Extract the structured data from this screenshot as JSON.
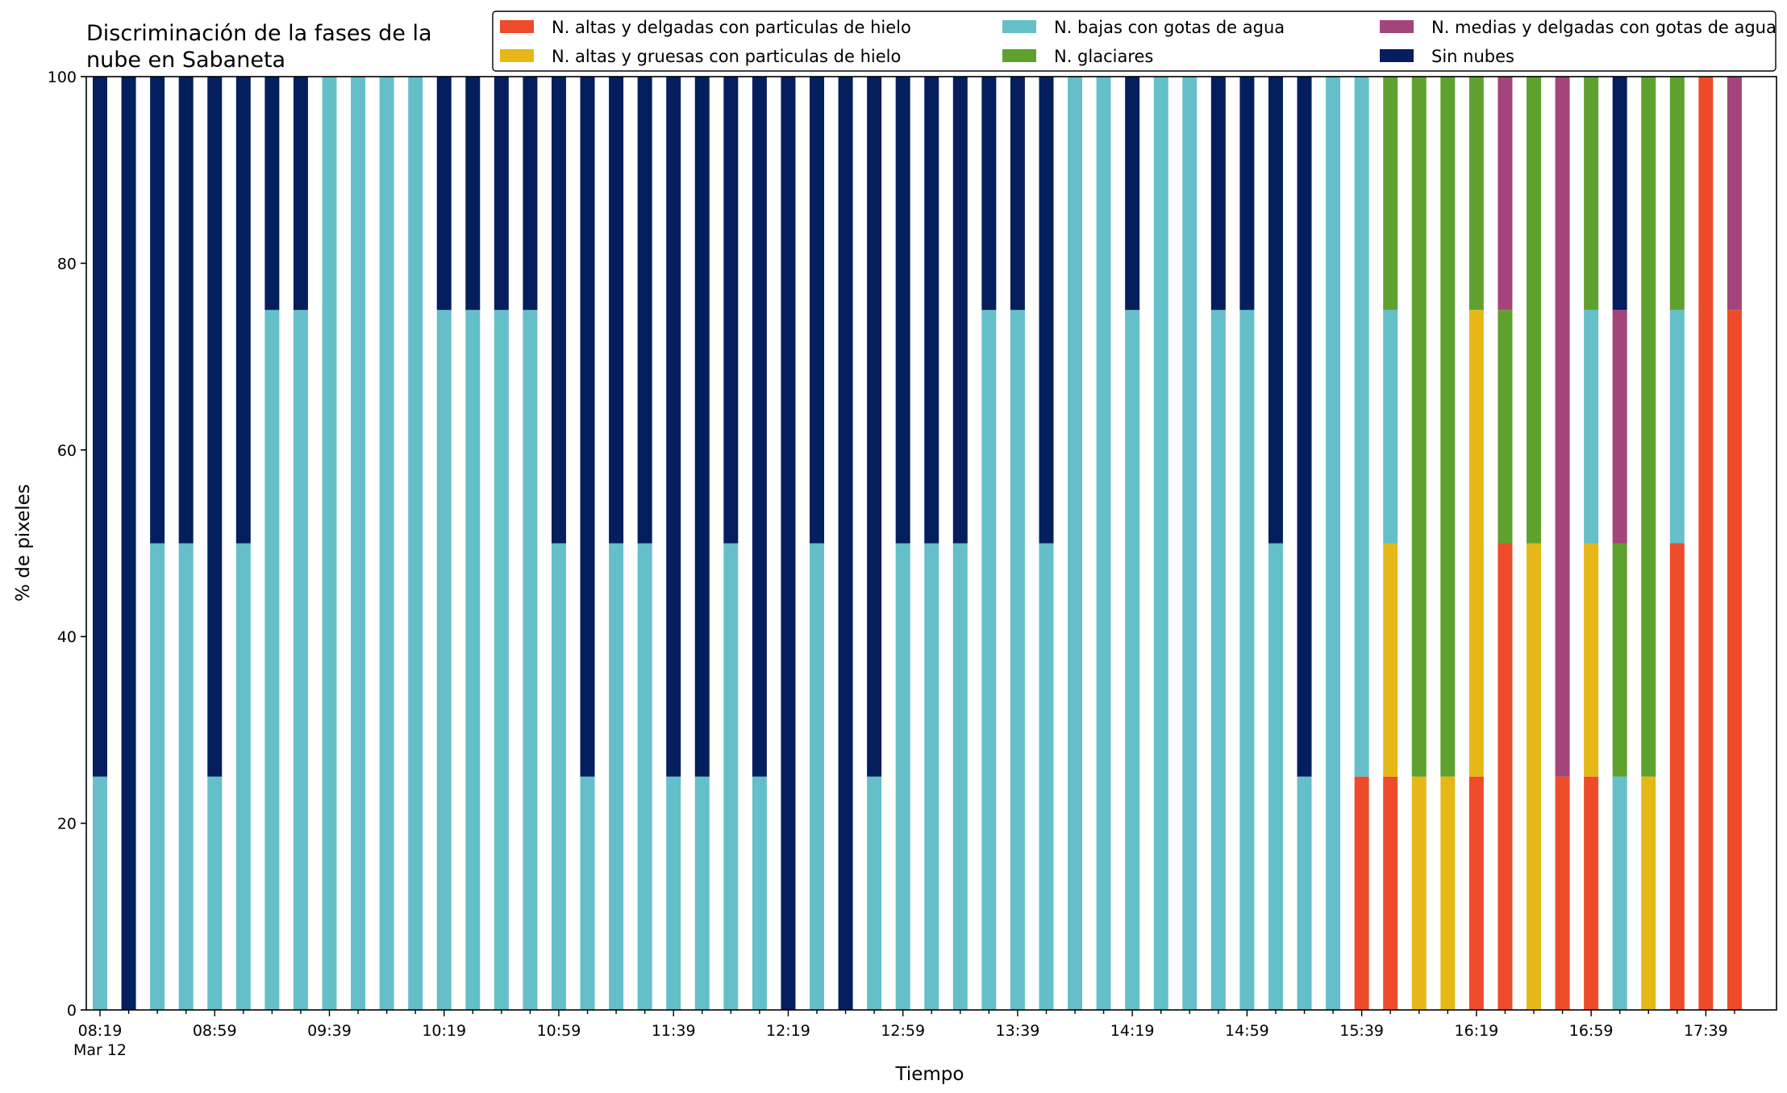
{
  "chart_data": {
    "type": "bar",
    "stacked": true,
    "title": "Discriminación de la fases de la\nnube en Sabaneta",
    "xlabel": "Tiempo",
    "ylabel": "% de pixeles",
    "ylim": [
      0,
      100
    ],
    "yticks": [
      0,
      20,
      40,
      60,
      80,
      100
    ],
    "xticks": [
      {
        "index": 0,
        "label": "08:19",
        "sublabel": "Mar 12"
      },
      {
        "index": 4,
        "label": "08:59"
      },
      {
        "index": 8,
        "label": "09:39"
      },
      {
        "index": 12,
        "label": "10:19"
      },
      {
        "index": 16,
        "label": "10:59"
      },
      {
        "index": 20,
        "label": "11:39"
      },
      {
        "index": 24,
        "label": "12:19"
      },
      {
        "index": 28,
        "label": "12:59"
      },
      {
        "index": 32,
        "label": "13:39"
      },
      {
        "index": 36,
        "label": "14:19"
      },
      {
        "index": 40,
        "label": "14:59"
      },
      {
        "index": 44,
        "label": "15:39"
      },
      {
        "index": 48,
        "label": "16:19"
      },
      {
        "index": 52,
        "label": "16:59"
      },
      {
        "index": 56,
        "label": "17:39"
      }
    ],
    "categories": [
      "08:19",
      "08:29",
      "08:39",
      "08:49",
      "08:59",
      "09:09",
      "09:19",
      "09:29",
      "09:39",
      "09:49",
      "09:59",
      "10:09",
      "10:19",
      "10:29",
      "10:39",
      "10:49",
      "10:59",
      "11:09",
      "11:19",
      "11:29",
      "11:39",
      "11:49",
      "11:59",
      "12:09",
      "12:19",
      "12:29",
      "12:39",
      "12:49",
      "12:59",
      "13:09",
      "13:19",
      "13:29",
      "13:39",
      "13:49",
      "13:59",
      "14:09",
      "14:19",
      "14:29",
      "14:39",
      "14:49",
      "14:59",
      "15:09",
      "15:19",
      "15:29",
      "15:39",
      "15:49",
      "15:59",
      "16:09",
      "16:19",
      "16:29",
      "16:39",
      "16:49",
      "16:59",
      "17:09",
      "17:19",
      "17:29",
      "17:39",
      "17:49"
    ],
    "legend_position": "top-right",
    "legend_columns": 3,
    "series": [
      {
        "name": "N. altas y delgadas con particulas de hielo",
        "color": "#ee4b2b",
        "values": [
          0,
          0,
          0,
          0,
          0,
          0,
          0,
          0,
          0,
          0,
          0,
          0,
          0,
          0,
          0,
          0,
          0,
          0,
          0,
          0,
          0,
          0,
          0,
          0,
          0,
          0,
          0,
          0,
          0,
          0,
          0,
          0,
          0,
          0,
          0,
          0,
          0,
          0,
          0,
          0,
          0,
          0,
          0,
          0,
          25,
          25,
          0,
          0,
          25,
          50,
          0,
          25,
          25,
          0,
          0,
          50,
          100,
          75
        ]
      },
      {
        "name": "N. altas y gruesas con particulas de hielo",
        "color": "#e6b817",
        "values": [
          0,
          0,
          0,
          0,
          0,
          0,
          0,
          0,
          0,
          0,
          0,
          0,
          0,
          0,
          0,
          0,
          0,
          0,
          0,
          0,
          0,
          0,
          0,
          0,
          0,
          0,
          0,
          0,
          0,
          0,
          0,
          0,
          0,
          0,
          0,
          0,
          0,
          0,
          0,
          0,
          0,
          0,
          0,
          0,
          0,
          25,
          25,
          25,
          50,
          0,
          50,
          0,
          25,
          0,
          25,
          0,
          0,
          0
        ]
      },
      {
        "name": "N. bajas con gotas de agua",
        "color": "#65bfc9",
        "values": [
          25,
          0,
          50,
          50,
          25,
          50,
          75,
          75,
          100,
          100,
          100,
          100,
          75,
          75,
          75,
          75,
          50,
          25,
          50,
          50,
          25,
          25,
          50,
          25,
          0,
          50,
          0,
          25,
          50,
          50,
          50,
          75,
          75,
          50,
          100,
          100,
          75,
          100,
          100,
          75,
          75,
          50,
          25,
          100,
          75,
          25,
          0,
          0,
          0,
          0,
          0,
          0,
          25,
          25,
          0,
          25,
          0,
          0
        ]
      },
      {
        "name": "N. glaciares",
        "color": "#5fa12e",
        "values": [
          0,
          0,
          0,
          0,
          0,
          0,
          0,
          0,
          0,
          0,
          0,
          0,
          0,
          0,
          0,
          0,
          0,
          0,
          0,
          0,
          0,
          0,
          0,
          0,
          0,
          0,
          0,
          0,
          0,
          0,
          0,
          0,
          0,
          0,
          0,
          0,
          0,
          0,
          0,
          0,
          0,
          0,
          0,
          0,
          0,
          25,
          75,
          75,
          25,
          25,
          50,
          0,
          25,
          25,
          75,
          25,
          0,
          0
        ]
      },
      {
        "name": "N. medias y delgadas con gotas de agua",
        "color": "#a3457a",
        "values": [
          0,
          0,
          0,
          0,
          0,
          0,
          0,
          0,
          0,
          0,
          0,
          0,
          0,
          0,
          0,
          0,
          0,
          0,
          0,
          0,
          0,
          0,
          0,
          0,
          0,
          0,
          0,
          0,
          0,
          0,
          0,
          0,
          0,
          0,
          0,
          0,
          0,
          0,
          0,
          0,
          0,
          0,
          0,
          0,
          0,
          0,
          0,
          0,
          0,
          25,
          0,
          75,
          0,
          25,
          0,
          0,
          0,
          25
        ]
      },
      {
        "name": "Sin nubes",
        "color": "#041e5e",
        "values": [
          75,
          100,
          50,
          50,
          75,
          50,
          25,
          25,
          0,
          0,
          0,
          0,
          25,
          25,
          25,
          25,
          50,
          75,
          50,
          50,
          75,
          75,
          50,
          75,
          100,
          50,
          100,
          75,
          50,
          50,
          50,
          25,
          25,
          50,
          0,
          0,
          25,
          0,
          0,
          25,
          25,
          50,
          75,
          0,
          0,
          0,
          0,
          0,
          0,
          0,
          0,
          0,
          0,
          25,
          0,
          0,
          0,
          0
        ]
      }
    ]
  }
}
